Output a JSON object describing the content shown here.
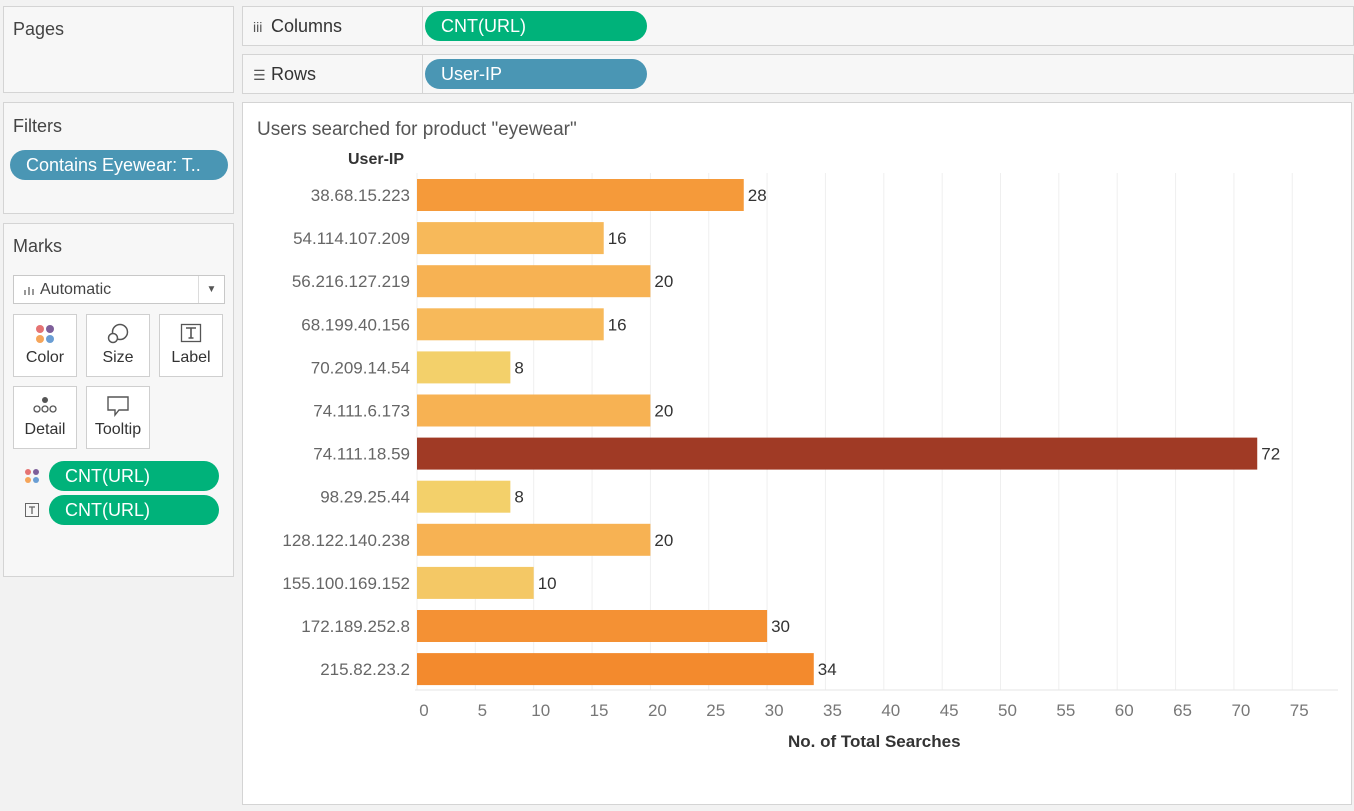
{
  "pages": {
    "title": "Pages"
  },
  "filters": {
    "title": "Filters",
    "pills": [
      {
        "label": "Contains Eyewear: T.."
      }
    ]
  },
  "marks": {
    "title": "Marks",
    "type": "Automatic",
    "buttons": [
      "Color",
      "Size",
      "Label",
      "Detail",
      "Tooltip"
    ],
    "pills": [
      {
        "label": "CNT(URL)",
        "icon": "color-dots-icon"
      },
      {
        "label": "CNT(URL)",
        "icon": "text-label-icon"
      }
    ]
  },
  "shelves": {
    "columns": {
      "label": "Columns",
      "pill": "CNT(URL)"
    },
    "rows": {
      "label": "Rows",
      "pill": "User-IP"
    }
  },
  "chart_data": {
    "type": "bar",
    "orientation": "horizontal",
    "title": "Users searched for product \"eyewear\"",
    "row_header": "User-IP",
    "xlabel": "No. of Total Searches",
    "xlim": [
      0,
      75
    ],
    "xticks": [
      0,
      5,
      10,
      15,
      20,
      25,
      30,
      35,
      40,
      45,
      50,
      55,
      60,
      65,
      70,
      75
    ],
    "grid": "vertical",
    "categories": [
      "38.68.15.223",
      "54.114.107.209",
      "56.216.127.219",
      "68.199.40.156",
      "70.209.14.54",
      "74.111.6.173",
      "74.111.18.59",
      "98.29.25.44",
      "128.122.140.238",
      "155.100.169.152",
      "172.189.252.8",
      "215.82.23.2"
    ],
    "values": [
      28,
      16,
      20,
      16,
      8,
      20,
      72,
      8,
      20,
      10,
      30,
      34
    ],
    "colors": [
      "#f59a3a",
      "#f7b95a",
      "#f7b253",
      "#f7b95a",
      "#f3d06a",
      "#f7b253",
      "#a03a25",
      "#f3d06a",
      "#f7b253",
      "#f4c865",
      "#f49134",
      "#f38a2d"
    ],
    "color_by": "CNT(URL)"
  }
}
